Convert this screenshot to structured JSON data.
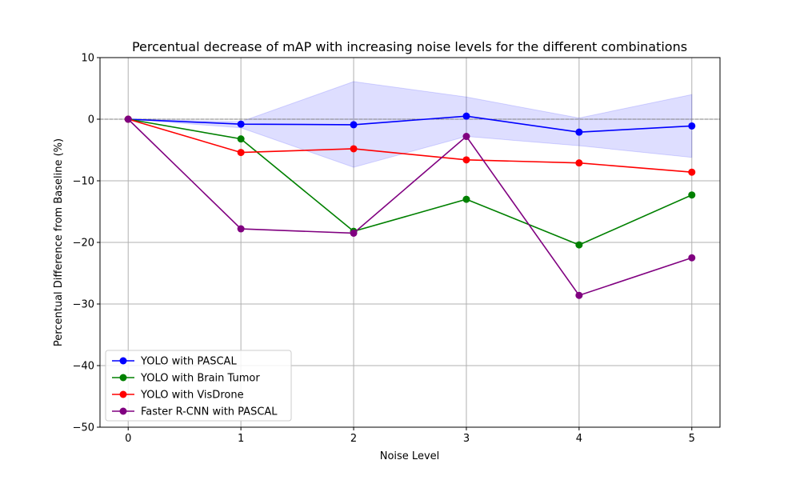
{
  "chart_data": {
    "type": "line",
    "title": "Percentual decrease of mAP with increasing noise levels for the different combinations",
    "xlabel": "Noise Level",
    "ylabel": "Percentual Difference from Baseline (%)",
    "x": [
      0,
      1,
      2,
      3,
      4,
      5
    ],
    "x_ticks": [
      "0",
      "1",
      "2",
      "3",
      "4",
      "5"
    ],
    "xlim": [
      -0.25,
      5.25
    ],
    "ylim": [
      -50,
      10
    ],
    "y_ticks": [
      10,
      0,
      -10,
      -20,
      -30,
      -40,
      -50
    ],
    "y_tick_labels": [
      "10",
      "0",
      "−10",
      "−20",
      "−30",
      "−40",
      "−50"
    ],
    "grid": true,
    "baseline_y": 0,
    "legend_position": "lower-left",
    "band": {
      "color": "#0000ff",
      "upper": [
        0,
        -0.4,
        6.1,
        3.6,
        0.2,
        4.0
      ],
      "lower": [
        0,
        -1.4,
        -7.8,
        -2.8,
        -4.3,
        -6.2
      ]
    },
    "series": [
      {
        "name": "YOLO with PASCAL",
        "color": "#0000ff",
        "values": [
          0,
          -0.8,
          -0.9,
          0.5,
          -2.1,
          -1.1
        ]
      },
      {
        "name": "YOLO with Brain Tumor",
        "color": "#008000",
        "values": [
          0,
          -3.2,
          -18.2,
          -13.0,
          -20.4,
          -12.3
        ]
      },
      {
        "name": "YOLO with VisDrone",
        "color": "#ff0000",
        "values": [
          0,
          -5.4,
          -4.8,
          -6.6,
          -7.1,
          -8.6
        ]
      },
      {
        "name": "Faster R-CNN with PASCAL",
        "color": "#800080",
        "values": [
          0,
          -17.8,
          -18.5,
          -2.8,
          -28.6,
          -22.5
        ]
      }
    ]
  }
}
